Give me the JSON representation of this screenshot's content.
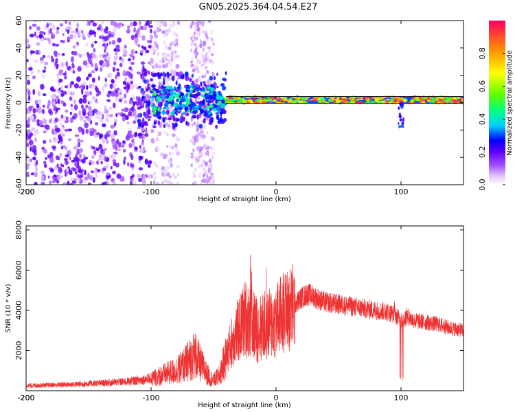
{
  "title": "GN05.2025.364.04.54.E27",
  "chart_data": [
    {
      "type": "heatmap",
      "xlabel": "Height of straight line (km)",
      "ylabel": "Frequency (Hz)",
      "xlim": [
        -200,
        150
      ],
      "ylim": [
        -60,
        60
      ],
      "x_ticks": [
        -200,
        -100,
        0,
        100
      ],
      "y_ticks": [
        -60,
        -40,
        -20,
        0,
        20,
        40,
        60
      ],
      "colorbar": {
        "label": "Normalized spectral amplitude",
        "range": [
          0,
          1
        ],
        "ticks": [
          0.0,
          0.2,
          0.4,
          0.6,
          0.8
        ],
        "colormap": [
          "#ffffff",
          "#e6c8ff",
          "#a050ff",
          "#6000ff",
          "#0000ff",
          "#00d0ff",
          "#00ff80",
          "#60ff00",
          "#ffff00",
          "#ff9000",
          "#ff0060"
        ]
      },
      "features": [
        {
          "x_range": [
            -200,
            -100
          ],
          "freq_range": [
            -60,
            60
          ],
          "amplitude": 0.1,
          "desc": "broadband noise"
        },
        {
          "x_range": [
            -100,
            -40
          ],
          "freq_range": [
            -8,
            12
          ],
          "amplitude": 0.35
        },
        {
          "x_range": [
            -40,
            150
          ],
          "freq_center": 2,
          "freq_width": 5,
          "amplitude": 0.95
        }
      ]
    },
    {
      "type": "line",
      "xlabel": "Height of straight line (km)",
      "ylabel": "SNR (10 * v/v)",
      "xlim": [
        -200,
        150
      ],
      "ylim": [
        0,
        8200
      ],
      "x_ticks": [
        -200,
        -100,
        0,
        100
      ],
      "y_ticks": [
        2000,
        4000,
        6000,
        8000
      ],
      "series": [
        {
          "name": "SNR",
          "color": "#ee3333",
          "x": [
            -200,
            -180,
            -160,
            -140,
            -120,
            -100,
            -90,
            -80,
            -75,
            -70,
            -65,
            -60,
            -55,
            -50,
            -45,
            -40,
            -35,
            -30,
            -25,
            -20,
            -15,
            -10,
            -5,
            0,
            5,
            10,
            15,
            20,
            25,
            30,
            35,
            40,
            50,
            60,
            70,
            80,
            90,
            95,
            100,
            105,
            110,
            120,
            130,
            140,
            150
          ],
          "y": [
            250,
            280,
            320,
            380,
            450,
            600,
            800,
            1000,
            1200,
            1500,
            1800,
            1300,
            800,
            500,
            800,
            1700,
            2500,
            3000,
            3600,
            3500,
            3000,
            3200,
            3300,
            3500,
            3800,
            4000,
            4300,
            4600,
            4800,
            4700,
            4500,
            4400,
            4300,
            4200,
            4100,
            4000,
            3900,
            3800,
            3500,
            3700,
            3500,
            3400,
            3300,
            3100,
            3000
          ]
        }
      ]
    }
  ]
}
